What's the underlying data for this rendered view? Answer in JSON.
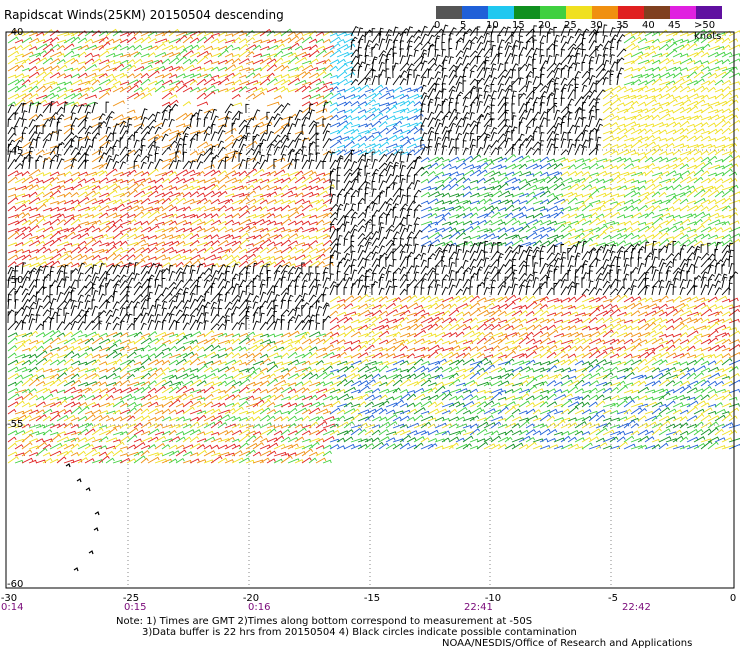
{
  "title": "Rapidscat Winds(25KM) 20150504 descending",
  "legend": {
    "labels": [
      "0",
      "5",
      "10",
      "15",
      "20",
      "25",
      "30",
      "35",
      "40",
      "45",
      ">50 knots"
    ],
    "colors": [
      "#555555",
      "#2060d8",
      "#20c8f0",
      "#109020",
      "#40d040",
      "#f0e020",
      "#f09010",
      "#e02020",
      "#804020",
      "#e020e0",
      "#6010a0"
    ]
  },
  "yticks": [
    "-40",
    "-45",
    "-50",
    "-55",
    "-60"
  ],
  "xticks": [
    "-30",
    "-25",
    "-20",
    "-15",
    "-10",
    "-5",
    "0"
  ],
  "times": [
    "0:14",
    "0:15",
    "0:16",
    "22:41",
    "22:42"
  ],
  "notes": {
    "line1": "Note: 1) Times are GMT 2)Times along bottom correspond to measurement at -50S",
    "line2": "3)Data buffer is 22 hrs from 20150504 4) Black circles indicate possible contamination",
    "line3": "NOAA/NESDIS/Office of Research and Applications"
  }
}
